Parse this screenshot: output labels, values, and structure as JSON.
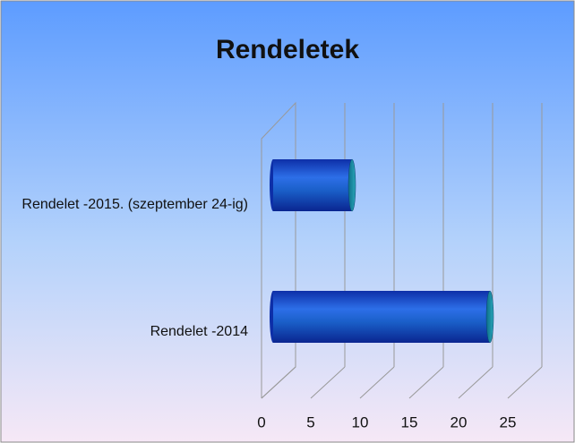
{
  "chart_data": {
    "type": "bar",
    "orientation": "horizontal",
    "title": "Rendeletek",
    "categories": [
      "Rendelet -2015. (szeptember 24-ig)",
      "Rendelet -2014"
    ],
    "values": [
      8,
      22
    ],
    "color": "#1f4fd8",
    "xlim": [
      0,
      25
    ],
    "xticks": [
      0,
      5,
      10,
      15,
      20,
      25
    ],
    "grid": true
  }
}
